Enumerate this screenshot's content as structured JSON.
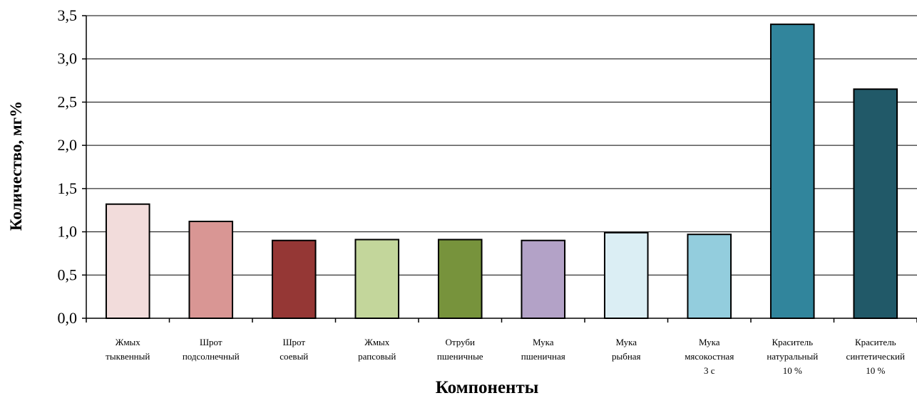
{
  "chart_data": {
    "type": "bar",
    "title": "",
    "xlabel": "Компоненты",
    "ylabel": "Количество, мг%",
    "ylim": [
      0,
      3.5
    ],
    "yticks": [
      "0,0",
      "0,5",
      "1,0",
      "1,5",
      "2,0",
      "2,5",
      "3,0",
      "3,5"
    ],
    "grid": true,
    "categories": [
      {
        "lines": [
          "Жмых",
          "тыквенный"
        ]
      },
      {
        "lines": [
          "Шрот",
          "подсолнечный"
        ]
      },
      {
        "lines": [
          "Шрот",
          "соевый"
        ]
      },
      {
        "lines": [
          "Жмых",
          "рапсовый"
        ]
      },
      {
        "lines": [
          "Отруби",
          "пшеничные"
        ]
      },
      {
        "lines": [
          "Мука",
          "пшеничная"
        ]
      },
      {
        "lines": [
          "Мука",
          "рыбная"
        ]
      },
      {
        "lines": [
          "Мука",
          "мясокостная",
          "3 с"
        ]
      },
      {
        "lines": [
          "Краситель",
          "натуральный",
          "10 %"
        ]
      },
      {
        "lines": [
          "Краситель",
          "синтетический",
          "10 %"
        ]
      }
    ],
    "values": [
      1.32,
      1.12,
      0.9,
      0.91,
      0.91,
      0.9,
      0.99,
      0.97,
      3.4,
      2.65
    ],
    "colors": [
      "#f2dcdb",
      "#d99694",
      "#953735",
      "#c3d69b",
      "#77933c",
      "#b3a2c7",
      "#dbeef4",
      "#93cddd",
      "#31859c",
      "#215968"
    ]
  }
}
